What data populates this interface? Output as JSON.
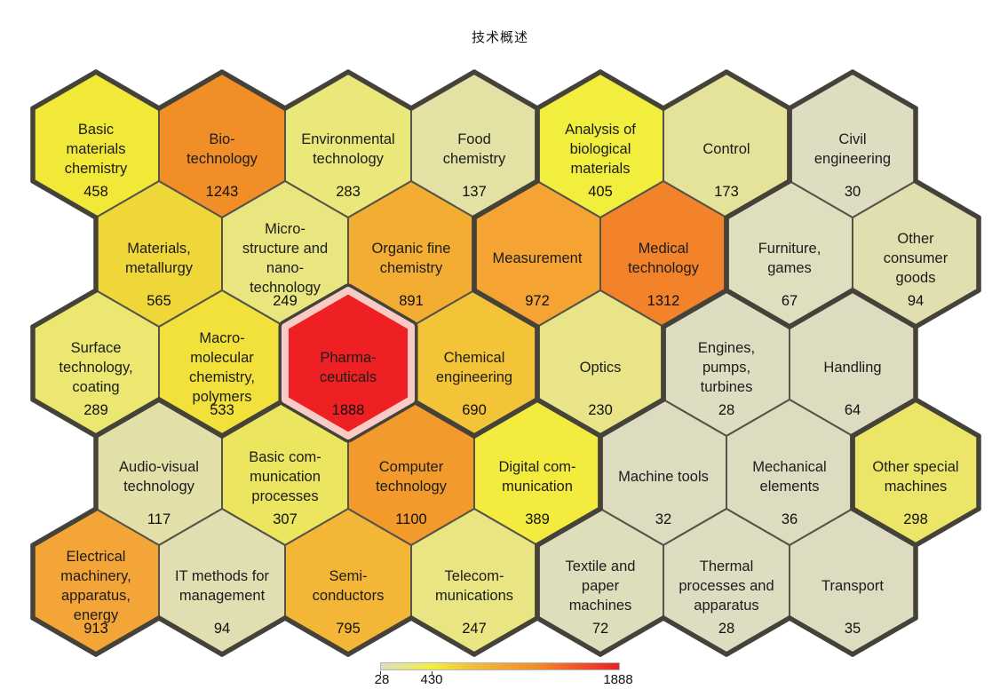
{
  "title": "技术概述",
  "legend": {
    "min_label": "28",
    "mid_label": "430",
    "max_label": "1888"
  },
  "chart_data": {
    "type": "heatmap",
    "subtype": "hexagonal-tile-map",
    "title": "技术概述",
    "value_meaning": "count per technology field",
    "highlighted_cell": "pharmaceuticals",
    "highlight_ring_color": "#f8cbc4",
    "border_colors": {
      "thin": "#555348",
      "thick": "#444239"
    },
    "legend": {
      "min": 28,
      "mid": 430,
      "max": 1888,
      "min_label": "28",
      "mid_label": "430",
      "max_label": "1888",
      "gradient_stops": [
        {
          "pos": "0%",
          "color": "#dfddc2"
        },
        {
          "pos": "22%",
          "color": "#f2ee3e"
        },
        {
          "pos": "36%",
          "color": "#f3c437"
        },
        {
          "pos": "51%",
          "color": "#f5a434"
        },
        {
          "pos": "65%",
          "color": "#f28e28"
        },
        {
          "pos": "100%",
          "color": "#ed1f24"
        }
      ]
    },
    "cells": [
      {
        "name": "basic-materials-chemistry",
        "label_lines": [
          "Basic",
          "materials",
          "chemistry"
        ],
        "value": 458,
        "row": 1,
        "col": 1,
        "cluster": "chemistry",
        "color": "#f2e838"
      },
      {
        "name": "bio-technology",
        "label_lines": [
          "Bio-",
          "technology"
        ],
        "value": 1243,
        "row": 1,
        "col": 2,
        "cluster": "chemistry",
        "color": "#f28e28"
      },
      {
        "name": "environmental-technology",
        "label_lines": [
          "Environmental",
          "technology"
        ],
        "value": 283,
        "row": 1,
        "col": 3,
        "cluster": "chemistry",
        "color": "#eae77b"
      },
      {
        "name": "food-chemistry",
        "label_lines": [
          "Food",
          "chemistry"
        ],
        "value": 137,
        "row": 1,
        "col": 4,
        "cluster": "chemistry",
        "color": "#e3e1a4"
      },
      {
        "name": "analysis-of-biological-materials",
        "label_lines": [
          "Analysis of",
          "biological",
          "materials"
        ],
        "value": 405,
        "row": 1,
        "col": 5,
        "cluster": "instruments",
        "color": "#f2ee3e"
      },
      {
        "name": "control",
        "label_lines": [
          "Control"
        ],
        "value": 173,
        "row": 1,
        "col": 6,
        "cluster": "instruments",
        "color": "#e5e29a"
      },
      {
        "name": "civil-engineering",
        "label_lines": [
          "Civil",
          "engineering"
        ],
        "value": 30,
        "row": 1,
        "col": 7,
        "cluster": "other",
        "color": "#deddc1"
      },
      {
        "name": "materials-metallurgy",
        "label_lines": [
          "Materials,",
          "metallurgy"
        ],
        "value": 565,
        "row": 2,
        "col": 1,
        "cluster": "chemistry",
        "color": "#f0d739"
      },
      {
        "name": "micro-structure-and-nano-technology",
        "label_lines": [
          "Micro-",
          "structure and",
          "nano-",
          "technology"
        ],
        "value": 249,
        "row": 2,
        "col": 2,
        "cluster": "chemistry",
        "color": "#e9e57f"
      },
      {
        "name": "organic-fine-chemistry",
        "label_lines": [
          "Organic fine",
          "chemistry"
        ],
        "value": 891,
        "row": 2,
        "col": 3,
        "cluster": "chemistry",
        "color": "#f3ad33"
      },
      {
        "name": "measurement",
        "label_lines": [
          "Measurement"
        ],
        "value": 972,
        "row": 2,
        "col": 4,
        "cluster": "instruments",
        "color": "#f5a434"
      },
      {
        "name": "medical-technology",
        "label_lines": [
          "Medical",
          "technology"
        ],
        "value": 1312,
        "row": 2,
        "col": 5,
        "cluster": "instruments",
        "color": "#f3832a"
      },
      {
        "name": "furniture-games",
        "label_lines": [
          "Furniture,",
          "games"
        ],
        "value": 67,
        "row": 2,
        "col": 6,
        "cluster": "other",
        "color": "#dfdebf"
      },
      {
        "name": "other-consumer-goods",
        "label_lines": [
          "Other",
          "consumer",
          "goods"
        ],
        "value": 94,
        "row": 2,
        "col": 7,
        "cluster": "other",
        "color": "#e1dfb0"
      },
      {
        "name": "surface-technology-coating",
        "label_lines": [
          "Surface",
          "technology,",
          "coating"
        ],
        "value": 289,
        "row": 3,
        "col": 1,
        "cluster": "chemistry",
        "color": "#ebe771"
      },
      {
        "name": "macro-molecular-chemistry-polymers",
        "label_lines": [
          "Macro-",
          "molecular",
          "chemistry,",
          "polymers"
        ],
        "value": 533,
        "row": 3,
        "col": 2,
        "cluster": "chemistry",
        "color": "#f1e13a"
      },
      {
        "name": "pharmaceuticals",
        "label_lines": [
          "Pharma-",
          "ceuticals"
        ],
        "value": 1888,
        "row": 3,
        "col": 3,
        "cluster": "chemistry",
        "color": "#ee2024",
        "highlighted": true
      },
      {
        "name": "chemical-engineering",
        "label_lines": [
          "Chemical",
          "engineering"
        ],
        "value": 690,
        "row": 3,
        "col": 4,
        "cluster": "chemistry",
        "color": "#f3c437"
      },
      {
        "name": "optics",
        "label_lines": [
          "Optics"
        ],
        "value": 230,
        "row": 3,
        "col": 5,
        "cluster": "instruments",
        "color": "#e8e487"
      },
      {
        "name": "engines-pumps-turbines",
        "label_lines": [
          "Engines,",
          "pumps,",
          "turbines"
        ],
        "value": 28,
        "row": 3,
        "col": 6,
        "cluster": "mechanical",
        "color": "#deddc1"
      },
      {
        "name": "handling",
        "label_lines": [
          "Handling"
        ],
        "value": 64,
        "row": 3,
        "col": 7,
        "cluster": "mechanical",
        "color": "#dedcc0"
      },
      {
        "name": "audio-visual-technology",
        "label_lines": [
          "Audio-visual",
          "technology"
        ],
        "value": 117,
        "row": 4,
        "col": 1,
        "cluster": "electrical",
        "color": "#e2e0a8"
      },
      {
        "name": "basic-communication-processes",
        "label_lines": [
          "Basic com-",
          "munication",
          "processes"
        ],
        "value": 307,
        "row": 4,
        "col": 2,
        "cluster": "electrical",
        "color": "#ece55f"
      },
      {
        "name": "computer-technology",
        "label_lines": [
          "Computer",
          "technology"
        ],
        "value": 1100,
        "row": 4,
        "col": 3,
        "cluster": "electrical",
        "color": "#f39a2c"
      },
      {
        "name": "digital-communication",
        "label_lines": [
          "Digital com-",
          "munication"
        ],
        "value": 389,
        "row": 4,
        "col": 4,
        "cluster": "electrical",
        "color": "#f3ec3e"
      },
      {
        "name": "machine-tools",
        "label_lines": [
          "Machine tools"
        ],
        "value": 32,
        "row": 4,
        "col": 5,
        "cluster": "mechanical",
        "color": "#dddcc0"
      },
      {
        "name": "mechanical-elements",
        "label_lines": [
          "Mechanical",
          "elements"
        ],
        "value": 36,
        "row": 4,
        "col": 6,
        "cluster": "mechanical",
        "color": "#dddcc0"
      },
      {
        "name": "other-special-machines",
        "label_lines": [
          "Other special",
          "machines"
        ],
        "value": 298,
        "row": 4,
        "col": 7,
        "cluster": "other",
        "color": "#ebe668"
      },
      {
        "name": "electrical-machinery-apparatus-energy",
        "label_lines": [
          "Electrical",
          "machinery,",
          "apparatus,",
          "energy"
        ],
        "value": 913,
        "row": 5,
        "col": 1,
        "cluster": "electrical",
        "color": "#f4a537"
      },
      {
        "name": "it-methods-for-management",
        "label_lines": [
          "IT methods for",
          "management"
        ],
        "value": 94,
        "row": 5,
        "col": 2,
        "cluster": "electrical",
        "color": "#e1dfb2"
      },
      {
        "name": "semi-conductors",
        "label_lines": [
          "Semi-",
          "conductors"
        ],
        "value": 795,
        "row": 5,
        "col": 3,
        "cluster": "electrical",
        "color": "#f3b637"
      },
      {
        "name": "telecommunications",
        "label_lines": [
          "Telecom-",
          "munications"
        ],
        "value": 247,
        "row": 5,
        "col": 4,
        "cluster": "electrical",
        "color": "#e9e582"
      },
      {
        "name": "textile-and-paper-machines",
        "label_lines": [
          "Textile and",
          "paper",
          "machines"
        ],
        "value": 72,
        "row": 5,
        "col": 5,
        "cluster": "mechanical",
        "color": "#dfdebc"
      },
      {
        "name": "thermal-processes-and-apparatus",
        "label_lines": [
          "Thermal",
          "processes and",
          "apparatus"
        ],
        "value": 28,
        "row": 5,
        "col": 6,
        "cluster": "mechanical",
        "color": "#deddc1"
      },
      {
        "name": "transport",
        "label_lines": [
          "Transport"
        ],
        "value": 35,
        "row": 5,
        "col": 7,
        "cluster": "mechanical",
        "color": "#dddcc1"
      }
    ]
  }
}
